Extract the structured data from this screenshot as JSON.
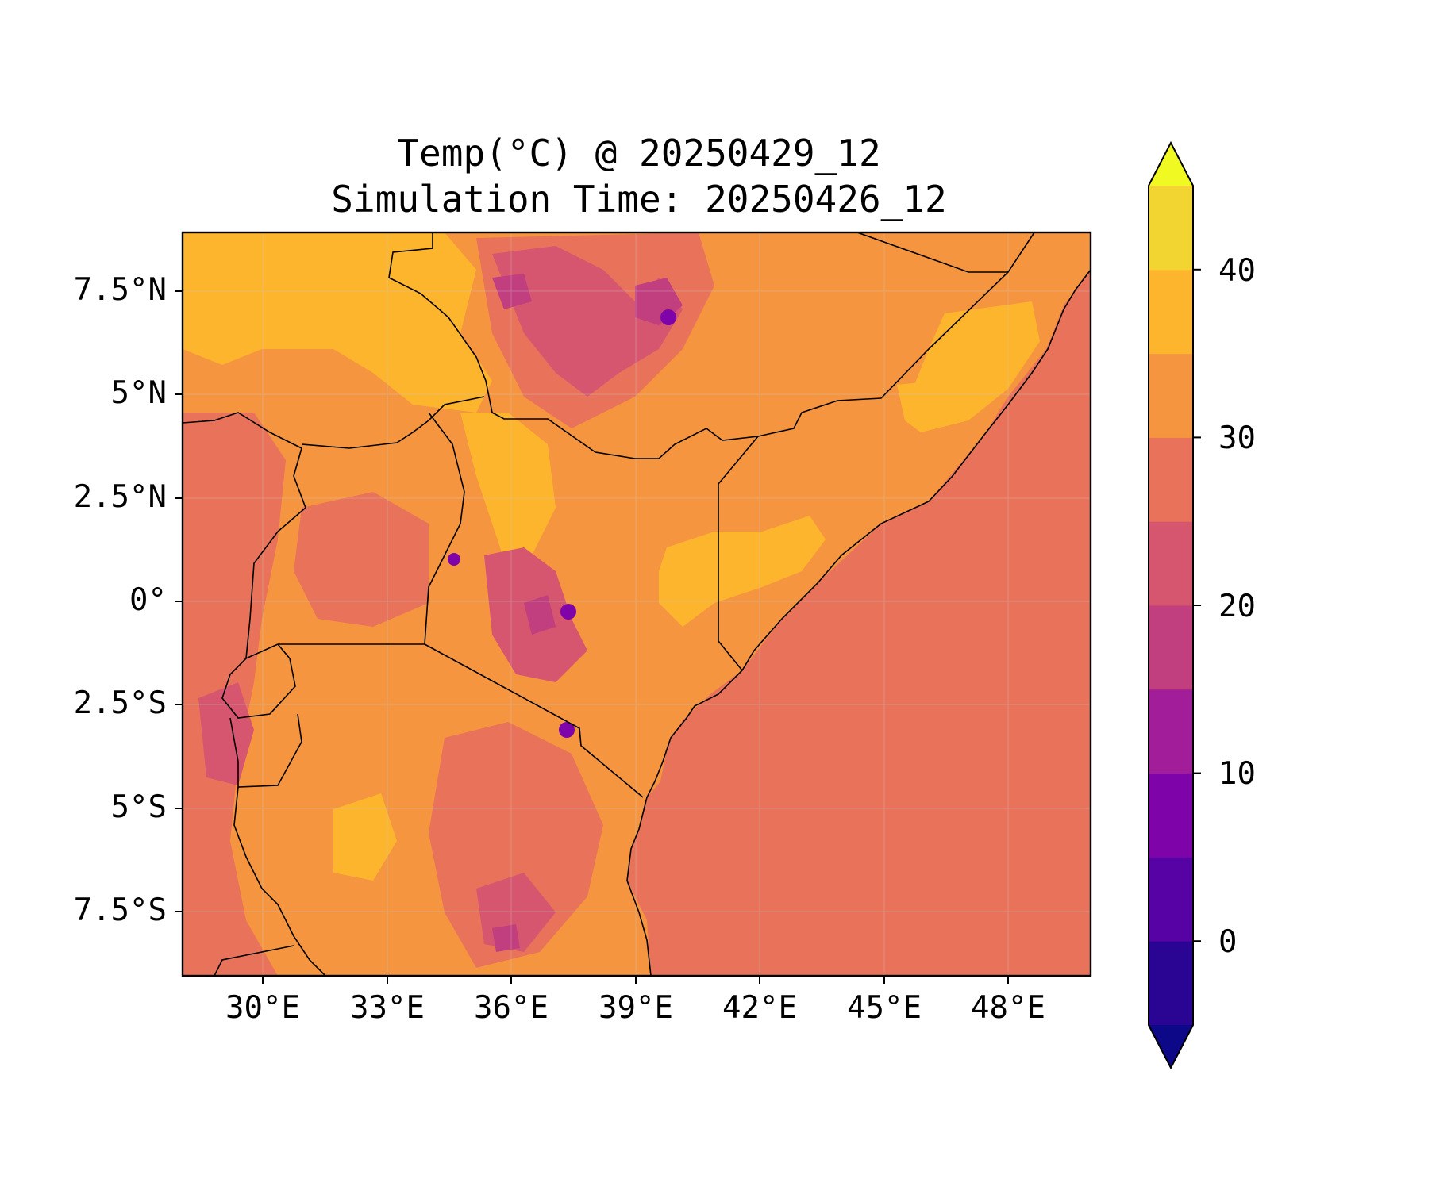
{
  "title": {
    "line1": "Temp(°C) @ 20250429_12",
    "line2": "Simulation Time: 20250426_12"
  },
  "axes": {
    "x_ticks": [
      "30°E",
      "33°E",
      "36°E",
      "39°E",
      "42°E",
      "45°E",
      "48°E"
    ],
    "y_ticks": [
      "7.5°N",
      "5°N",
      "2.5°N",
      "0°",
      "2.5°S",
      "5°S",
      "7.5°S"
    ],
    "x_range": [
      28,
      50
    ],
    "y_range": [
      -9,
      9
    ],
    "x_tick_values": [
      30,
      33,
      36,
      39,
      42,
      45,
      48
    ],
    "y_tick_values": [
      7.5,
      5,
      2.5,
      0,
      -2.5,
      -5,
      -7.5
    ],
    "grid": true
  },
  "colorbar": {
    "ticks": [
      "40",
      "30",
      "20",
      "10",
      "0"
    ],
    "tick_values": [
      40,
      30,
      20,
      10,
      0
    ],
    "levels": [
      -5,
      0,
      5,
      10,
      15,
      20,
      25,
      30,
      35,
      40,
      45
    ],
    "colors": [
      "#0d0887",
      "#2a0593",
      "#5602a4",
      "#7e03a8",
      "#a21d9a",
      "#c13e7f",
      "#d6566f",
      "#e8735a",
      "#f59540",
      "#fdb52e",
      "#f3d531",
      "#f0f921"
    ],
    "extend": "both"
  },
  "chart_data": {
    "type": "heatmap",
    "title": "Temp(°C) @ 20250429_12 / Simulation Time: 20250426_12",
    "xlabel": "",
    "ylabel": "",
    "xlim": [
      28,
      50
    ],
    "ylim": [
      -9,
      9
    ],
    "variable": "Temp(°C)",
    "value_range": [
      -5,
      45
    ],
    "sea_value": 27.5,
    "notes_visible": "filled temperature contours over East Africa with country borders and coastline"
  }
}
